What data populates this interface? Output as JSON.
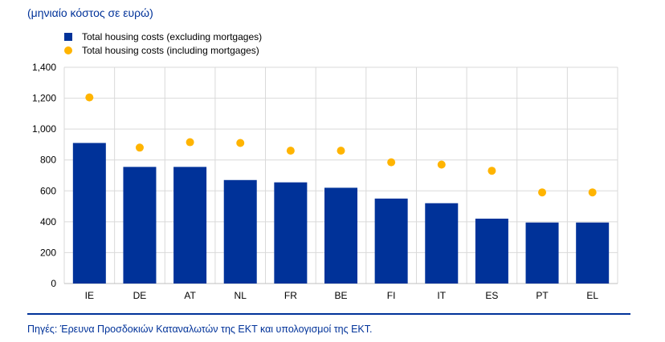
{
  "subtitle": "(μηνιαίο κόστος σε ευρώ)",
  "legend": [
    {
      "label": "Total housing costs (excluding mortgages)",
      "marker": "bar"
    },
    {
      "label": "Total housing costs (including mortgages)",
      "marker": "dot"
    }
  ],
  "source": "Πηγές: Έρευνα Προσδοκιών Καταναλωτών της ΕΚΤ και υπολογισμοί της ΕΚΤ.",
  "colors": {
    "bar": "#003299",
    "dot": "#FFB400",
    "grid": "#d9d9d9",
    "text": "#000000"
  },
  "chart_data": {
    "type": "bar",
    "categories": [
      "IE",
      "DE",
      "AT",
      "NL",
      "FR",
      "BE",
      "FI",
      "IT",
      "ES",
      "PT",
      "EL"
    ],
    "series": [
      {
        "name": "Total housing costs (excluding mortgages)",
        "type": "bar",
        "values": [
          910,
          755,
          755,
          670,
          655,
          620,
          550,
          520,
          420,
          395,
          395
        ]
      },
      {
        "name": "Total housing costs (including mortgages)",
        "type": "scatter",
        "values": [
          1205,
          880,
          915,
          910,
          860,
          860,
          785,
          770,
          730,
          590,
          590
        ]
      }
    ],
    "ylim": [
      0,
      1400
    ],
    "yticks": [
      0,
      200,
      400,
      600,
      800,
      1000,
      1200,
      1400
    ],
    "ytick_labels": [
      "0",
      "200",
      "400",
      "600",
      "800",
      "1,000",
      "1,200",
      "1,400"
    ],
    "grid": true,
    "legend_position": "top-left"
  }
}
